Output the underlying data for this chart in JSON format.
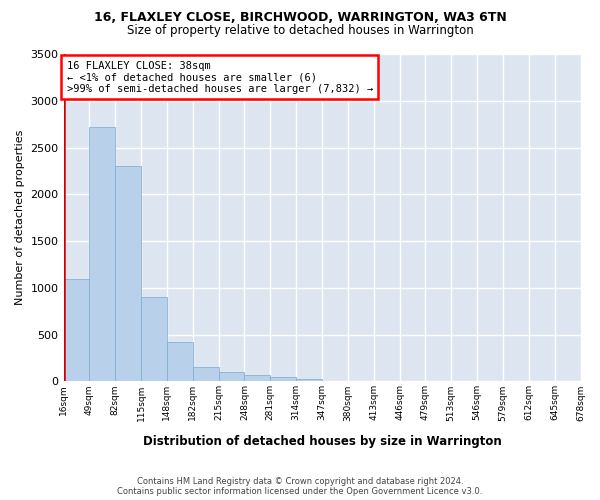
{
  "title1": "16, FLAXLEY CLOSE, BIRCHWOOD, WARRINGTON, WA3 6TN",
  "title2": "Size of property relative to detached houses in Warrington",
  "xlabel": "Distribution of detached houses by size in Warrington",
  "ylabel": "Number of detached properties",
  "annotation_line1": "16 FLAXLEY CLOSE: 38sqm",
  "annotation_line2": "← <1% of detached houses are smaller (6)",
  "annotation_line3": ">99% of semi-detached houses are larger (7,832) →",
  "footer1": "Contains HM Land Registry data © Crown copyright and database right 2024.",
  "footer2": "Contains public sector information licensed under the Open Government Licence v3.0.",
  "bar_heights": [
    1100,
    2720,
    2300,
    900,
    420,
    150,
    100,
    70,
    50,
    30,
    10,
    5,
    3,
    2,
    1,
    1,
    0,
    0,
    0,
    0
  ],
  "bar_labels": [
    "16sqm",
    "49sqm",
    "82sqm",
    "115sqm",
    "148sqm",
    "182sqm",
    "215sqm",
    "248sqm",
    "281sqm",
    "314sqm",
    "347sqm",
    "380sqm",
    "413sqm",
    "446sqm",
    "479sqm",
    "513sqm",
    "546sqm",
    "579sqm",
    "612sqm",
    "645sqm",
    "678sqm"
  ],
  "bar_color": "#b8d0ea",
  "bar_edge_color": "#7aaad0",
  "bg_color": "#dde6f0",
  "fig_bg_color": "#ffffff",
  "grid_color": "#ffffff",
  "marker_color": "#cc0000",
  "ylim": [
    0,
    3500
  ],
  "yticks": [
    0,
    500,
    1000,
    1500,
    2000,
    2500,
    3000,
    3500
  ]
}
